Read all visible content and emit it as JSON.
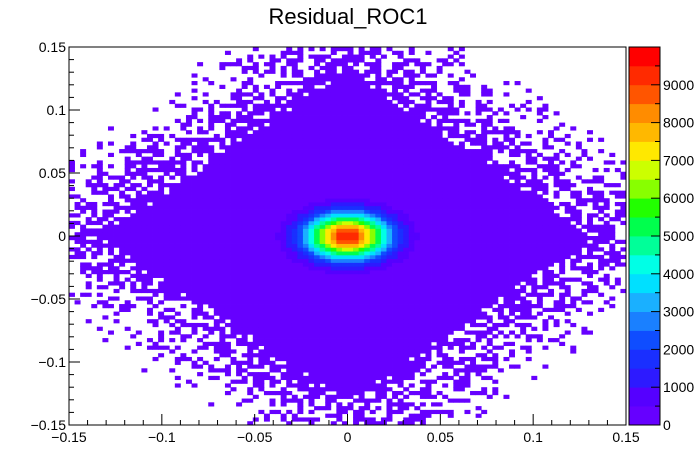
{
  "chart_data": {
    "type": "heatmap",
    "title": "Residual_ROC1",
    "xlabel": "",
    "ylabel": "",
    "xlim": [
      -0.15,
      0.15
    ],
    "ylim": [
      -0.15,
      0.15
    ],
    "x_ticks": [
      {
        "value": -0.15,
        "label": "−0.15"
      },
      {
        "value": -0.1,
        "label": "−0.1"
      },
      {
        "value": -0.05,
        "label": "−0.05"
      },
      {
        "value": 0,
        "label": "0"
      },
      {
        "value": 0.05,
        "label": "0.05"
      },
      {
        "value": 0.1,
        "label": "0.1"
      },
      {
        "value": 0.15,
        "label": "0.15"
      }
    ],
    "y_ticks": [
      {
        "value": -0.15,
        "label": "−0.15"
      },
      {
        "value": -0.1,
        "label": "−0.1"
      },
      {
        "value": -0.05,
        "label": "−0.05"
      },
      {
        "value": 0,
        "label": "0"
      },
      {
        "value": 0.05,
        "label": "0.05"
      },
      {
        "value": 0.1,
        "label": "0.1"
      },
      {
        "value": 0.15,
        "label": "0.15"
      }
    ],
    "z_range": [
      0,
      10000
    ],
    "z_ticks": [
      {
        "value": 0,
        "label": "0"
      },
      {
        "value": 1000,
        "label": "1000"
      },
      {
        "value": 2000,
        "label": "2000"
      },
      {
        "value": 3000,
        "label": "3000"
      },
      {
        "value": 4000,
        "label": "4000"
      },
      {
        "value": 5000,
        "label": "5000"
      },
      {
        "value": 6000,
        "label": "6000"
      },
      {
        "value": 7000,
        "label": "7000"
      },
      {
        "value": 8000,
        "label": "8000"
      },
      {
        "value": 9000,
        "label": "9000"
      }
    ],
    "bins": {
      "nx": 100,
      "ny": 100
    },
    "peak": {
      "x": 0,
      "y": 0,
      "z": 9500
    },
    "core_sigma": {
      "x": 0.0155,
      "y": 0.0125
    },
    "background_shape": "diamond",
    "background_half_extent": 0.13,
    "colormap": [
      "#6600ff",
      "#5500ff",
      "#2d1aff",
      "#1a2fff",
      "#0f4dff",
      "#1a80ff",
      "#1ab0ff",
      "#00e0ff",
      "#00ffe6",
      "#00ff99",
      "#00ff4d",
      "#22ff00",
      "#88ff00",
      "#ccff00",
      "#ffe800",
      "#ffb800",
      "#ff8c00",
      "#ff5500",
      "#ff2a00",
      "#ff0000"
    ]
  }
}
